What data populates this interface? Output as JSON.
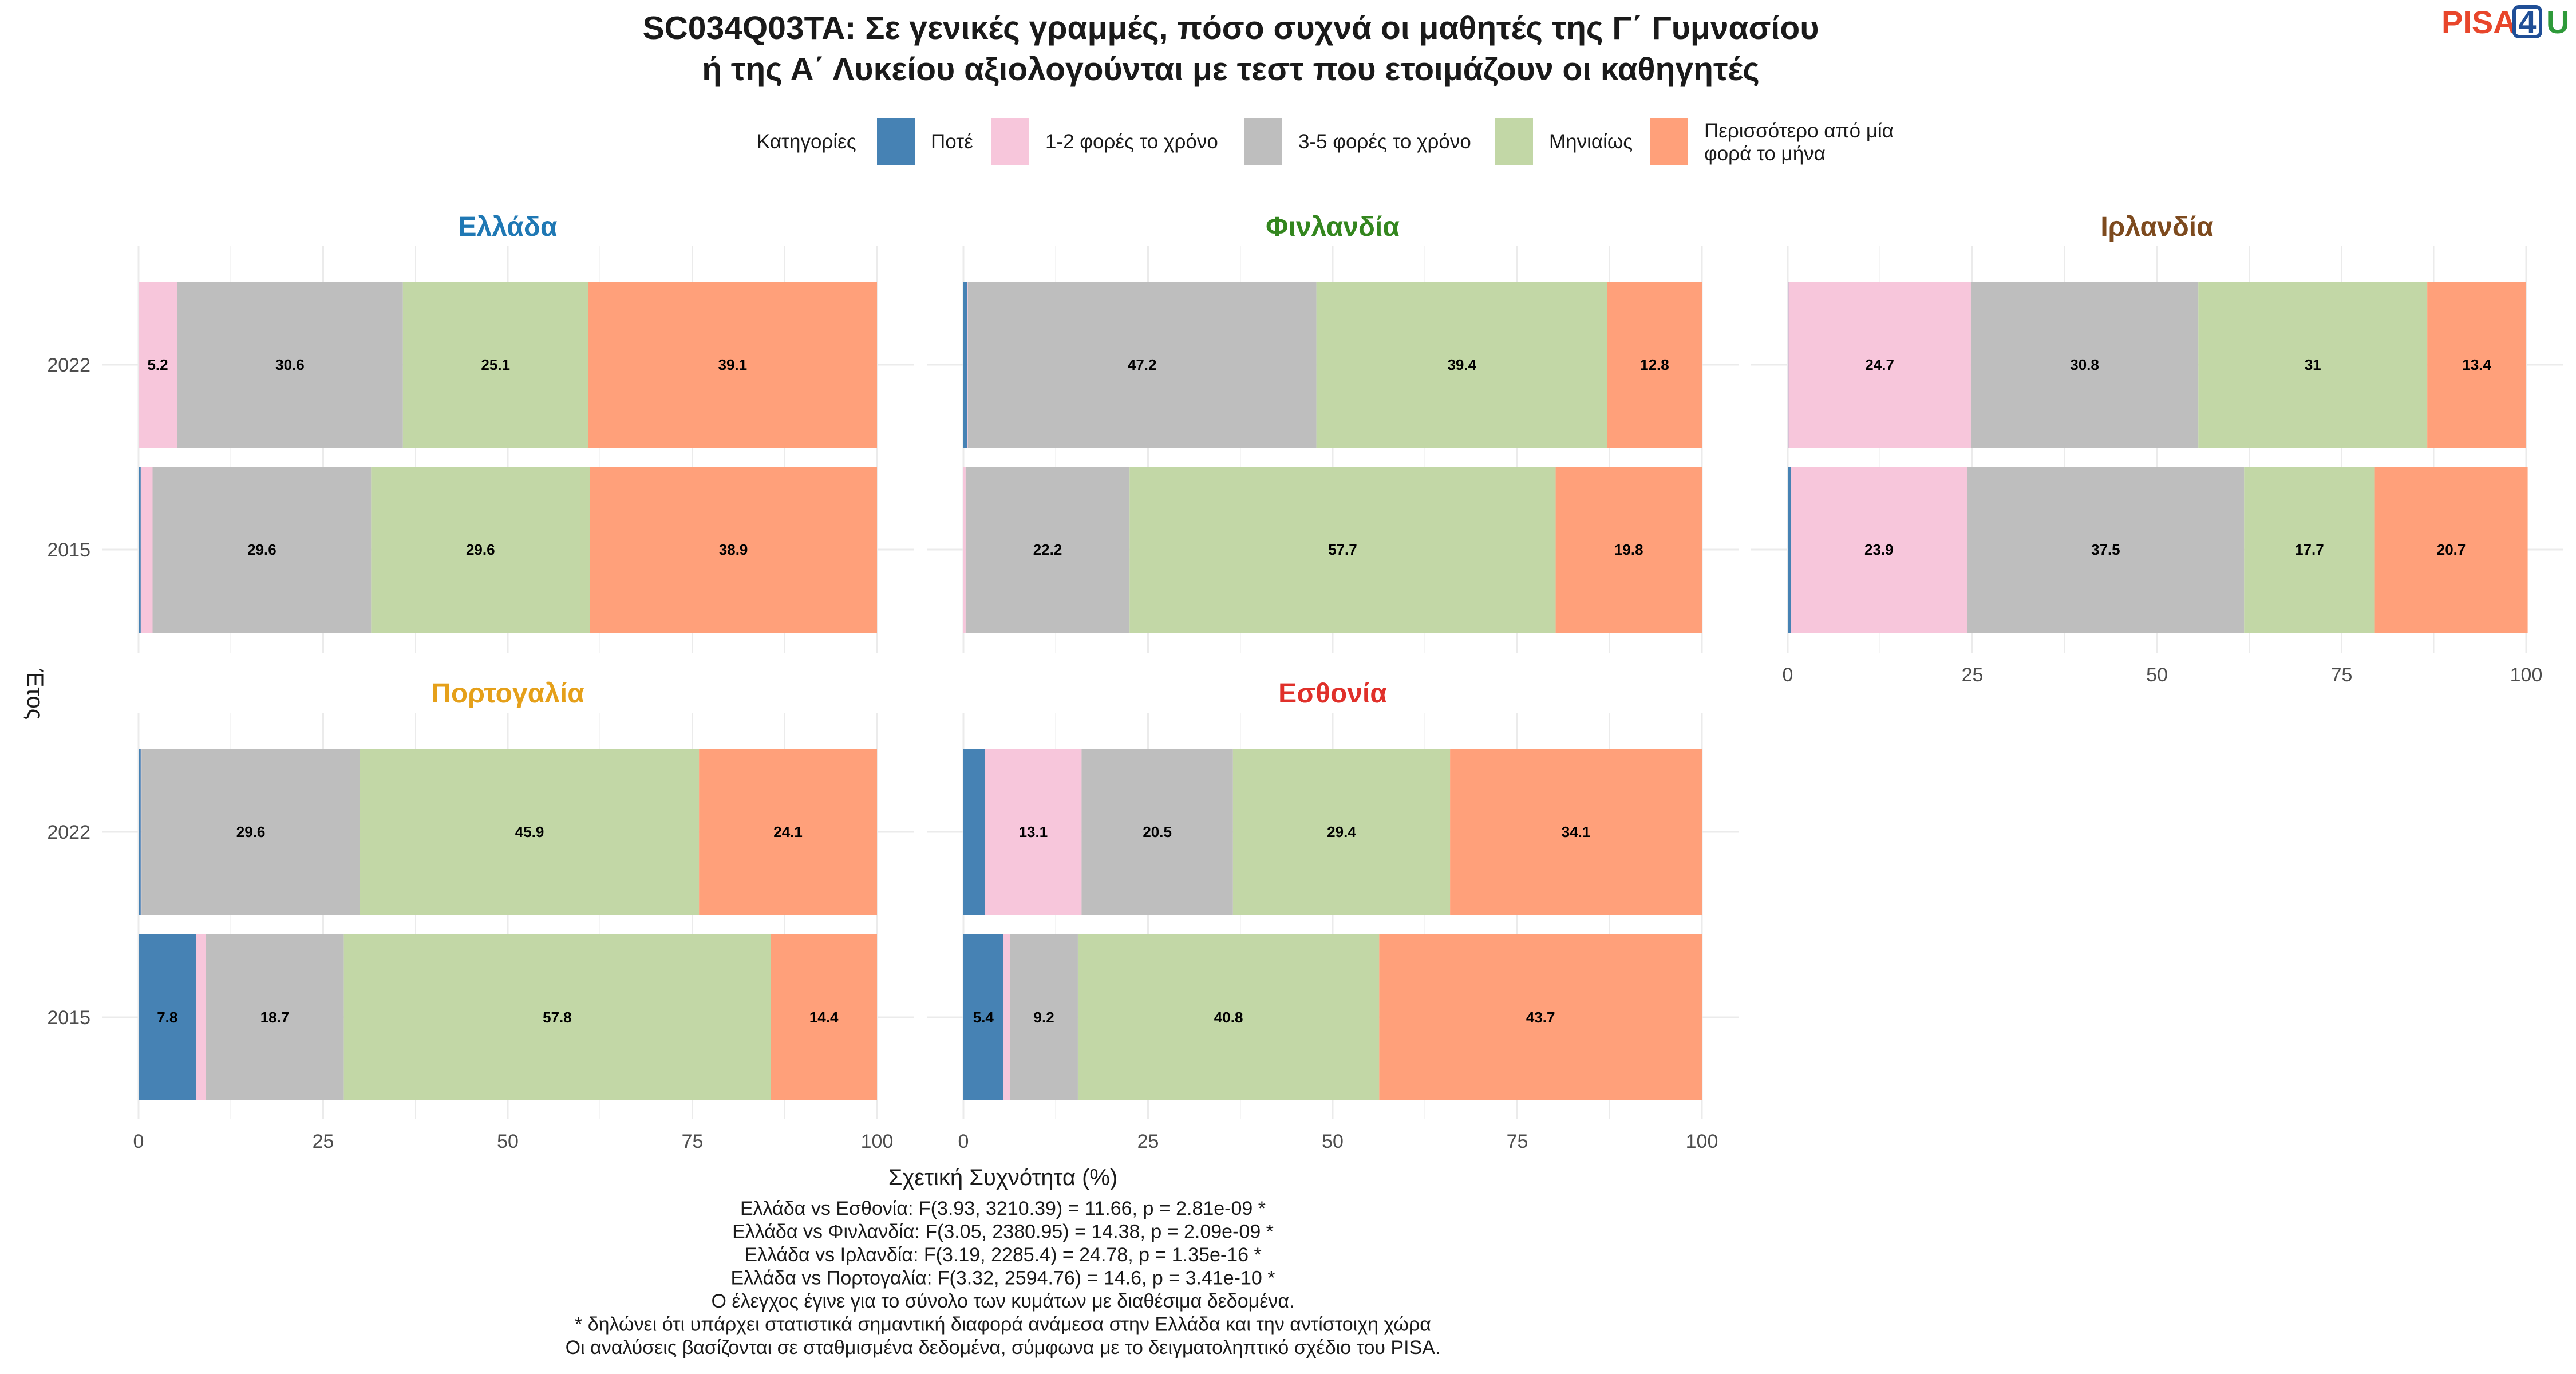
{
  "chart_data": {
    "type": "bar",
    "orientation": "horizontal-stacked",
    "title_lines": [
      "SC034Q03TA: Σε γενικές γραμμές, πόσο συχνά οι μαθητές της Γ΄ Γυμνασίου",
      "ή της Α΄ Λυκείου αξιολογούνται με τεστ που ετοιμάζουν οι καθηγητές"
    ],
    "xlabel": "Σχετική Συχνότητα (%)",
    "ylabel": "Έτος",
    "xlim": [
      0,
      100
    ],
    "xticks": [
      "0",
      "25",
      "50",
      "75",
      "100"
    ],
    "legend": {
      "title": "Κατηγορίες",
      "placement": "top",
      "items": [
        {
          "key": "never",
          "label_lines": [
            "Ποτέ"
          ],
          "color": "#4682B4"
        },
        {
          "key": "y12",
          "label_lines": [
            "1-2 φορές το χρόνο"
          ],
          "color": "#F7C6DB"
        },
        {
          "key": "y35",
          "label_lines": [
            "3-5 φορές το χρόνο"
          ],
          "color": "#BEBEBE"
        },
        {
          "key": "monthly",
          "label_lines": [
            "Μηνιαίως"
          ],
          "color": "#C2D7A6"
        },
        {
          "key": "more",
          "label_lines": [
            "Περισσότερο από μία",
            "φορά το μήνα"
          ],
          "color": "#FFA07A"
        }
      ]
    },
    "years": [
      "2022",
      "2015"
    ],
    "panels": [
      {
        "country": "Ελλάδα",
        "color": "#1F78B4",
        "bars": [
          {
            "year": "2022",
            "values": [
              0.0,
              5.2,
              30.6,
              25.1,
              39.1
            ],
            "labels": [
              "",
              "5.2",
              "30.6",
              "25.1",
              "39.1"
            ]
          },
          {
            "year": "2015",
            "values": [
              0.3,
              1.6,
              29.6,
              29.6,
              38.9
            ],
            "labels": [
              "",
              "",
              "29.6",
              "29.6",
              "38.9"
            ]
          }
        ]
      },
      {
        "country": "Φινλανδία",
        "color": "#33861E",
        "bars": [
          {
            "year": "2022",
            "values": [
              0.5,
              0.1,
              47.2,
              39.4,
              12.8
            ],
            "labels": [
              "",
              "",
              "47.2",
              "39.4",
              "12.8"
            ]
          },
          {
            "year": "2015",
            "values": [
              0.0,
              0.3,
              22.2,
              57.7,
              19.8
            ],
            "labels": [
              "",
              "",
              "22.2",
              "57.7",
              "19.8"
            ]
          }
        ]
      },
      {
        "country": "Ιρλανδία",
        "color": "#7D4A1E",
        "bars": [
          {
            "year": "2022",
            "values": [
              0.1,
              24.7,
              30.8,
              31,
              13.4
            ],
            "labels": [
              "",
              "24.7",
              "30.8",
              "31",
              "13.4"
            ]
          },
          {
            "year": "2015",
            "values": [
              0.4,
              23.9,
              37.5,
              17.7,
              20.7
            ],
            "labels": [
              "",
              "23.9",
              "37.5",
              "17.7",
              "20.7"
            ]
          }
        ]
      },
      {
        "country": "Πορτογαλία",
        "color": "#E5A01A",
        "bars": [
          {
            "year": "2022",
            "values": [
              0.3,
              0.1,
              29.6,
              45.9,
              24.1
            ],
            "labels": [
              "",
              "",
              "29.6",
              "45.9",
              "24.1"
            ]
          },
          {
            "year": "2015",
            "values": [
              7.8,
              1.3,
              18.7,
              57.8,
              14.4
            ],
            "labels": [
              "7.8",
              "",
              "18.7",
              "57.8",
              "14.4"
            ]
          }
        ]
      },
      {
        "country": "Εσθονία",
        "color": "#E0302A",
        "bars": [
          {
            "year": "2022",
            "values": [
              2.9,
              13.1,
              20.5,
              29.4,
              34.1
            ],
            "labels": [
              "",
              "13.1",
              "20.5",
              "29.4",
              "34.1"
            ]
          },
          {
            "year": "2015",
            "values": [
              5.4,
              0.9,
              9.2,
              40.8,
              43.7
            ],
            "labels": [
              "5.4",
              "",
              "9.2",
              "40.8",
              "43.7"
            ]
          }
        ]
      }
    ],
    "footnotes": [
      "Ελλάδα vs Εσθονία: F(3.93, 3210.39) = 11.66, p = 2.81e-09 *",
      "Ελλάδα vs Φινλανδία: F(3.05, 2380.95) = 14.38, p = 2.09e-09 *",
      "Ελλάδα vs Ιρλανδία: F(3.19, 2285.4) = 24.78, p = 1.35e-16 *",
      "Ελλάδα vs Πορτογαλία: F(3.32, 2594.76) = 14.6, p = 3.41e-10 *",
      "Ο έλεγχος έγινε για το σύνολο των κυμάτων με διαθέσιμα δεδομένα.",
      "* δηλώνει ότι υπάρχει στατιστικά σημαντική διαφορά ανάμεσα στην Ελλάδα και την αντίστοιχη χώρα",
      "Οι αναλύσεις βασίζονται σε σταθμισμένα δεδομένα, σύμφωνα με το δειγματοληπτικό σχέδιο του PISA."
    ]
  },
  "logo": {
    "text": "PISA",
    "badge": "4",
    "suffix": "U",
    "color_text": "#E8462B",
    "color_badge": "#1F4E96",
    "color_suffix": "#2E9A3A"
  }
}
